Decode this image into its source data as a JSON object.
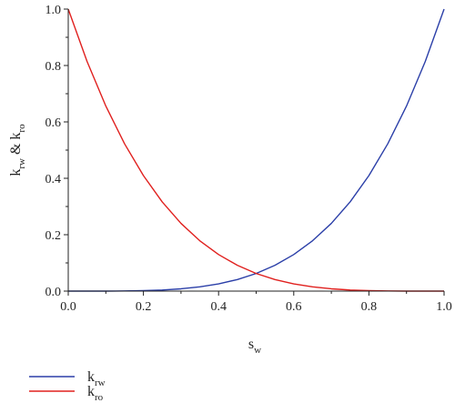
{
  "chart_data": {
    "type": "line",
    "title": "",
    "xlabel": {
      "main": "s",
      "sub": "w"
    },
    "ylabel": {
      "main1": "k",
      "sub1": "rw",
      "mid": " & ",
      "main2": "k",
      "sub2": "ro"
    },
    "xlim": [
      0.0,
      1.0
    ],
    "ylim": [
      0.0,
      1.0
    ],
    "x_ticks": [
      "0.0",
      "0.2",
      "0.4",
      "0.6",
      "0.8",
      "1.0"
    ],
    "y_ticks": [
      "0.0",
      "0.2",
      "0.4",
      "0.6",
      "0.8",
      "1.0"
    ],
    "grid": false,
    "legend_placement": "bottom-left, below plot",
    "series": [
      {
        "name": {
          "main": "k",
          "sub": "rw"
        },
        "color": "#2b3fa8",
        "x": [
          0.0,
          0.05,
          0.1,
          0.15,
          0.2,
          0.25,
          0.3,
          0.35,
          0.4,
          0.45,
          0.5,
          0.55,
          0.6,
          0.65,
          0.7,
          0.75,
          0.8,
          0.85,
          0.9,
          0.95,
          1.0
        ],
        "y": [
          0.0,
          0.0,
          0.0,
          0.0005,
          0.0016,
          0.0039,
          0.0081,
          0.015,
          0.0256,
          0.041,
          0.0625,
          0.0915,
          0.1296,
          0.1785,
          0.2401,
          0.3164,
          0.4096,
          0.522,
          0.6561,
          0.8145,
          1.0
        ]
      },
      {
        "name": {
          "main": "k",
          "sub": "ro"
        },
        "color": "#e0201e",
        "x": [
          0.0,
          0.05,
          0.1,
          0.15,
          0.2,
          0.25,
          0.3,
          0.35,
          0.4,
          0.45,
          0.5,
          0.55,
          0.6,
          0.65,
          0.7,
          0.75,
          0.8,
          0.85,
          0.9,
          0.95,
          1.0
        ],
        "y": [
          1.0,
          0.8145,
          0.6561,
          0.522,
          0.4096,
          0.3164,
          0.2401,
          0.1785,
          0.1296,
          0.0915,
          0.0625,
          0.041,
          0.0256,
          0.015,
          0.0081,
          0.0039,
          0.0016,
          0.0005,
          0.0,
          0.0,
          0.0
        ]
      }
    ]
  }
}
